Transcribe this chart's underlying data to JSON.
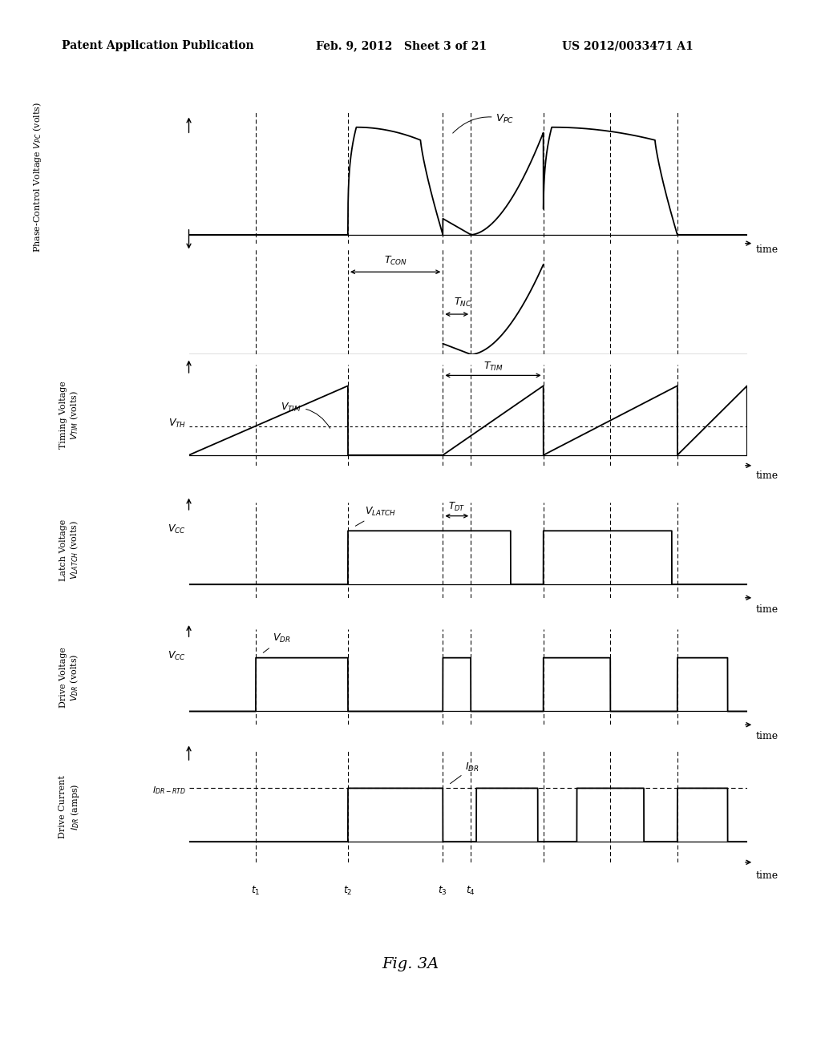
{
  "header_left": "Patent Application Publication",
  "header_mid": "Feb. 9, 2012   Sheet 3 of 21",
  "header_right": "US 2012/0033471 A1",
  "fig_label": "Fig. 3A",
  "t1": 0.12,
  "t2": 0.285,
  "t3": 0.455,
  "t4": 0.505,
  "t5": 0.635,
  "t6": 0.755,
  "t7": 0.875,
  "t7end": 0.965,
  "T": 1.0,
  "vcc": 0.72,
  "vth": 0.42,
  "idr_rtd": 0.65,
  "lw": 1.3
}
